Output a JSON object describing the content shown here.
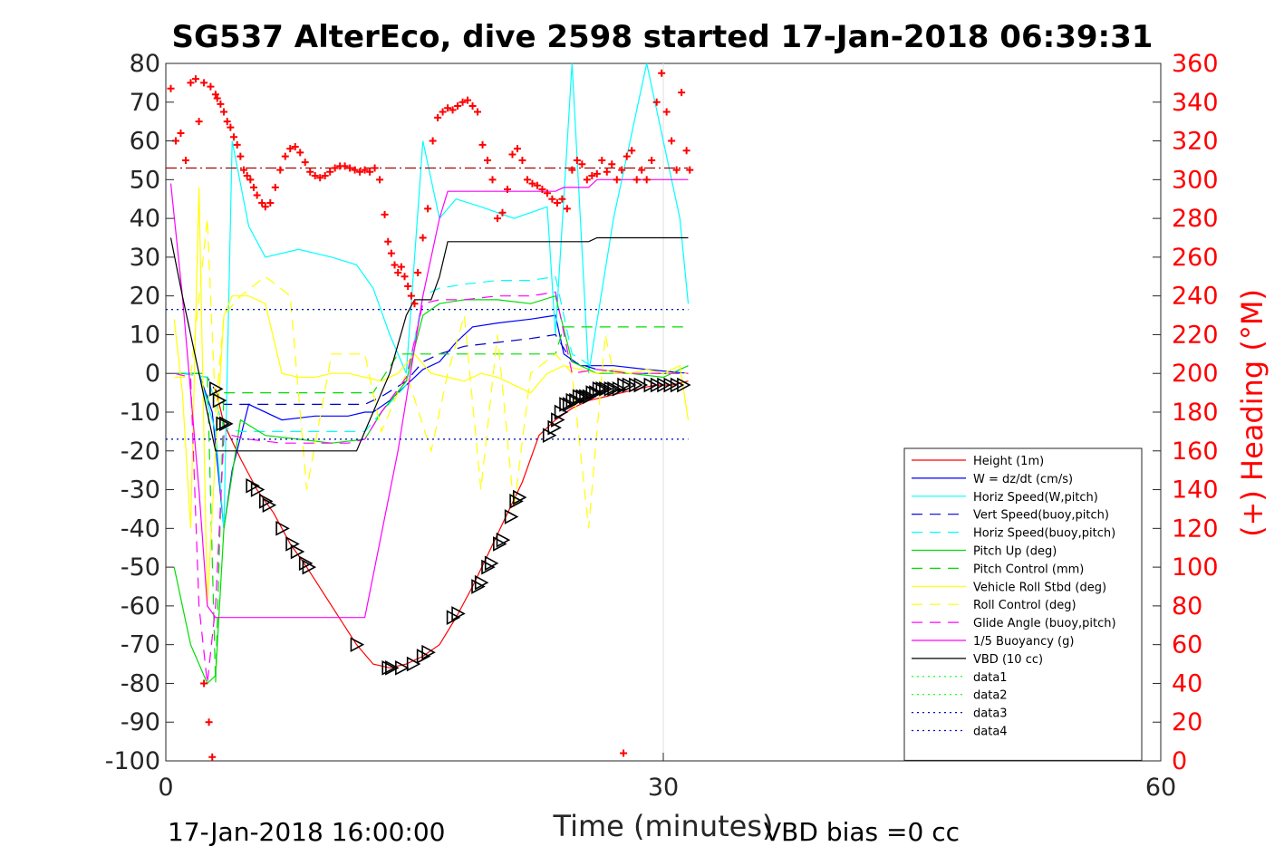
{
  "chart_data": {
    "type": "line",
    "title": "SG537 AlterEco, dive 2598 started 17-Jan-2018 06:39:31",
    "xlabel": "Time (minutes)",
    "ylabel_right": "(+) Heading (°M)",
    "footer_left": "17-Jan-2018 16:00:00",
    "footer_right": "VBD bias =0 cc",
    "xlim": [
      0,
      60
    ],
    "ylim": [
      -100,
      80
    ],
    "ylim_right": [
      0,
      360
    ],
    "x_ticks": [
      "0",
      "30",
      "60"
    ],
    "y_ticks": [
      "80",
      "70",
      "60",
      "50",
      "40",
      "30",
      "20",
      "10",
      "0",
      "-10",
      "-20",
      "-30",
      "-40",
      "-50",
      "-60",
      "-70",
      "-80",
      "-90",
      "-100"
    ],
    "y_ticks_right": [
      "360",
      "340",
      "320",
      "300",
      "280",
      "260",
      "240",
      "220",
      "200",
      "180",
      "160",
      "140",
      "120",
      "100",
      "80",
      "60",
      "40",
      "20",
      "0"
    ],
    "grid": "x-only at 30",
    "legend_position": "lower-right",
    "colors": {
      "red": "#ff0000",
      "blue": "#0000ff",
      "cyan": "#00ffff",
      "darkblue": "#0000cc",
      "green": "#00dd00",
      "yellow": "#ffff00",
      "magenta": "#ff00ff",
      "black": "#000000",
      "darkred": "#aa0000"
    },
    "series": [
      {
        "name": "Height (1m)",
        "color": "#ff0000",
        "style": "solid",
        "x": [
          3.0,
          3.5,
          4.5,
          5.5,
          6.5,
          7.5,
          8.5,
          10.0,
          11.5,
          12.5,
          13.5,
          14.5,
          15.5,
          16.5,
          17.5,
          18.5,
          19.5,
          20.5,
          21.5,
          22.5,
          23.5,
          24.5,
          25.5,
          26.5,
          27.5,
          28.5,
          29.5,
          30.5,
          31.5
        ],
        "y": [
          -4,
          -13,
          -22,
          -30,
          -36,
          -44,
          -50,
          -60,
          -70,
          -75,
          -76,
          -75,
          -73,
          -70,
          -63,
          -55,
          -46,
          -37,
          -28,
          -16,
          -12,
          -9,
          -7,
          -6,
          -5,
          -4,
          -3,
          -3,
          -2
        ]
      },
      {
        "name": "W = dz/dt (cm/s)",
        "color": "#0000ff",
        "style": "solid",
        "x": [
          0.5,
          2.0,
          2.8,
          3.5,
          4.0,
          5.0,
          7.0,
          9.0,
          11.0,
          12.0,
          12.5,
          13.5,
          14.5,
          15.5,
          16.5,
          17.5,
          18.5,
          20.0,
          22.0,
          23.5,
          24.0,
          25.0,
          27.0,
          29.0,
          31.5
        ],
        "y": [
          0,
          0,
          -10,
          -40,
          -25,
          -8,
          -12,
          -11,
          -11,
          -10,
          -10,
          -7,
          -3,
          1,
          3,
          8,
          12,
          13,
          14,
          15,
          5,
          2,
          2,
          1,
          0
        ]
      },
      {
        "name": "Horiz Speed(W,pitch)",
        "color": "#00ffff",
        "style": "solid",
        "x": [
          0.5,
          2.0,
          3.0,
          3.5,
          4.0,
          5.0,
          6.0,
          8.0,
          10.0,
          11.5,
          12.5,
          13.5,
          14.5,
          15.5,
          16.5,
          17.5,
          19.0,
          21.0,
          23.0,
          23.5,
          24.5,
          25.5,
          27.0,
          29.0,
          31.0,
          31.5
        ],
        "y": [
          0,
          0,
          -15,
          -40,
          60,
          38,
          30,
          32,
          30,
          28,
          22,
          10,
          0,
          60,
          40,
          45,
          43,
          40,
          43,
          10,
          80,
          0,
          40,
          80,
          40,
          18
        ]
      },
      {
        "name": "Vert Speed(buoy,pitch)",
        "color": "#0000cc",
        "style": "dash",
        "x": [
          1.0,
          2.5,
          3.5,
          4.5,
          6.0,
          8.0,
          10.0,
          12.0,
          13.0,
          14.5,
          15.5,
          16.5,
          18.0,
          20.0,
          22.0,
          23.5,
          24.5,
          26.0,
          28.0,
          31.0
        ],
        "y": [
          0,
          -1,
          -8,
          -8,
          -8,
          -8,
          -8,
          -8,
          -6,
          -2,
          3,
          5,
          7,
          8,
          9,
          10,
          3,
          1,
          0,
          0
        ]
      },
      {
        "name": "Horiz Speed(buoy,pitch)",
        "color": "#00ffff",
        "style": "dash",
        "x": [
          1.0,
          2.5,
          3.5,
          4.5,
          6.0,
          8.0,
          10.0,
          12.0,
          13.0,
          14.5,
          15.5,
          16.5,
          18.0,
          20.0,
          22.0,
          23.5,
          24.5,
          26.0,
          28.0,
          31.0
        ],
        "y": [
          0,
          -1,
          -14,
          -15,
          -15,
          -15,
          -15,
          -15,
          -10,
          -3,
          20,
          22,
          23,
          24,
          24,
          25,
          5,
          1,
          0,
          0
        ]
      },
      {
        "name": "Pitch Up (deg)",
        "color": "#00dd00",
        "style": "solid",
        "x": [
          0.5,
          1.5,
          2.5,
          3.0,
          3.5,
          4.5,
          6.0,
          8.0,
          10.0,
          12.0,
          13.0,
          14.5,
          15.5,
          16.5,
          18.0,
          20.0,
          22.0,
          23.5,
          24.5,
          26.0,
          28.0,
          30.0,
          31.5
        ],
        "y": [
          -50,
          -70,
          -80,
          -78,
          -40,
          -12,
          -16,
          -17,
          -18,
          -17,
          -10,
          -2,
          15,
          18,
          19,
          19,
          18,
          20,
          3,
          0,
          0,
          -1,
          2
        ]
      },
      {
        "name": "Pitch Control (mm)",
        "color": "#00dd00",
        "style": "dash",
        "x": [
          0.5,
          2.5,
          3.0,
          3.5,
          5.0,
          8.0,
          11.0,
          12.5,
          14.0,
          15.5,
          17.0,
          20.0,
          23.5,
          24.0,
          27.0,
          31.5
        ],
        "y": [
          0,
          0,
          -80,
          -5,
          -5,
          -5,
          -5,
          -5,
          5,
          5,
          5,
          5,
          5,
          12,
          12,
          12
        ]
      },
      {
        "name": "Vehicle Roll Stbd (deg)",
        "color": "#ffff00",
        "style": "solid",
        "x": [
          0.5,
          1.0,
          1.5,
          2.0,
          2.5,
          3.0,
          3.5,
          4.0,
          5.0,
          6.0,
          7.0,
          8.0,
          9.0,
          10.0,
          11.0,
          12.0,
          13.0,
          14.0,
          15.0,
          16.0,
          17.0,
          18.0,
          19.0,
          20.0,
          21.0,
          22.0,
          23.0,
          24.0,
          25.0,
          26.0,
          27.0,
          28.0,
          29.0,
          30.0,
          31.0,
          31.5
        ],
        "y": [
          14,
          -5,
          -40,
          48,
          -60,
          -20,
          15,
          20,
          20,
          18,
          0,
          -1,
          -1,
          0,
          0,
          -1,
          -2,
          0,
          5,
          0,
          -1,
          -2,
          0,
          -1,
          -3,
          -5,
          0,
          2,
          1,
          0,
          1,
          0,
          1,
          0,
          2,
          -12
        ]
      },
      {
        "name": "Roll Control (deg)",
        "color": "#ffff00",
        "style": "dash",
        "x": [
          0.5,
          1.5,
          2.5,
          3.0,
          3.5,
          4.5,
          6.0,
          7.5,
          8.5,
          10.0,
          12.0,
          13.0,
          14.5,
          16.0,
          17.0,
          18.0,
          19.0,
          20.0,
          21.0,
          22.0,
          23.5,
          24.5,
          25.5,
          26.5,
          27.0,
          28.0,
          30.0,
          31.5
        ],
        "y": [
          -1,
          -1,
          40,
          -10,
          15,
          20,
          25,
          20,
          -30,
          5,
          5,
          -15,
          0,
          -20,
          0,
          15,
          -30,
          10,
          -35,
          0,
          5,
          0,
          -40,
          10,
          0,
          0,
          0,
          0
        ]
      },
      {
        "name": "Glide Angle (buoy,pitch)",
        "color": "#ff00ff",
        "style": "dash",
        "x": [
          0.5,
          1.5,
          2.0,
          2.5,
          3.0,
          3.5,
          4.0,
          5.0,
          7.0,
          9.0,
          11.0,
          12.0,
          13.0,
          14.5,
          15.5,
          16.5,
          18.0,
          20.0,
          22.0,
          23.5,
          24.5,
          26.0,
          28.0,
          31.5
        ],
        "y": [
          0,
          -1,
          -60,
          -80,
          -60,
          -16,
          -16,
          -17,
          -18,
          -18,
          -18,
          -17,
          -10,
          -1,
          18,
          19,
          19,
          20,
          20,
          21,
          0,
          1,
          0,
          0
        ]
      },
      {
        "name": "1/5 Buoyancy (g)",
        "color": "#ff00ff",
        "style": "solid",
        "x": [
          0.3,
          1.0,
          2.0,
          2.5,
          3.0,
          4.0,
          8.0,
          11.5,
          12.0,
          14.0,
          15.5,
          16.5,
          17.0,
          23.5,
          24.0,
          25.5,
          26.0,
          31.5
        ],
        "y": [
          49,
          20,
          -30,
          -60,
          -63,
          -63,
          -63,
          -63,
          -63,
          -20,
          20,
          40,
          47,
          47,
          48,
          48,
          50,
          50
        ]
      },
      {
        "name": "VBD (10 cc)",
        "color": "#000000",
        "style": "solid",
        "x": [
          0.3,
          1.0,
          2.0,
          3.0,
          4.0,
          8.0,
          11.5,
          12.5,
          13.5,
          14.5,
          15.0,
          15.5,
          16.0,
          16.5,
          17.0,
          18.0,
          23.5,
          25.5,
          26.0,
          31.5
        ],
        "y": [
          35,
          20,
          0,
          -20,
          -20,
          -20,
          -20,
          -10,
          0,
          15,
          19,
          19,
          19,
          25,
          34,
          34,
          34,
          34,
          35,
          35
        ]
      },
      {
        "name": "data1",
        "color": "#00ff00",
        "style": "dot",
        "x": [
          0,
          31.5
        ],
        "y": [
          16.5,
          16.5
        ]
      },
      {
        "name": "data2",
        "color": "#00ff00",
        "style": "dot",
        "x": [
          0,
          31.5
        ],
        "y": [
          -17,
          -17
        ]
      },
      {
        "name": "data3",
        "color": "#0000cc",
        "style": "dot",
        "x": [
          0,
          31.5
        ],
        "y": [
          16.5,
          16.5
        ]
      },
      {
        "name": "data4",
        "color": "#0000cc",
        "style": "dot",
        "x": [
          0,
          31.5
        ],
        "y": [
          -17,
          -17
        ]
      }
    ],
    "heading_reference": {
      "color": "#aa0000",
      "style": "dashdot",
      "value_right": 306,
      "x": [
        0,
        31.5
      ]
    },
    "heading_points": {
      "color": "#ff0000",
      "x": [
        0.3,
        0.6,
        0.9,
        1.2,
        1.5,
        1.8,
        2.0,
        2.3,
        2.7,
        3.0,
        3.1,
        3.3,
        3.5,
        3.7,
        3.9,
        4.1,
        4.3,
        4.5,
        4.7,
        4.9,
        5.1,
        5.3,
        5.5,
        5.8,
        6.0,
        6.3,
        6.6,
        6.9,
        7.2,
        7.5,
        7.8,
        8.1,
        8.4,
        8.7,
        9.0,
        9.3,
        9.6,
        9.9,
        10.2,
        10.5,
        10.8,
        11.1,
        11.4,
        11.7,
        12.0,
        12.3,
        12.6,
        12.9,
        13.2,
        13.4,
        13.6,
        13.8,
        14.0,
        14.2,
        14.4,
        14.6,
        14.8,
        15.0,
        15.2,
        15.5,
        15.8,
        16.1,
        16.4,
        16.7,
        17.0,
        17.3,
        17.6,
        17.9,
        18.2,
        18.5,
        18.8,
        19.1,
        19.4,
        19.7,
        20.0,
        20.3,
        20.6,
        20.9,
        21.2,
        21.5,
        21.8,
        22.1,
        22.4,
        22.7,
        23.0,
        23.3,
        23.6,
        23.9,
        24.2,
        24.5,
        24.8,
        25.1,
        25.4,
        25.7,
        26.0,
        26.3,
        26.6,
        26.9,
        27.2,
        27.5,
        27.8,
        28.1,
        28.4,
        28.7,
        29.0,
        29.3,
        29.6,
        29.9,
        30.2,
        30.5,
        30.8,
        31.1,
        31.4,
        31.6,
        2.3,
        2.6,
        2.8,
        27.6
      ],
      "y": [
        347,
        320,
        324,
        310,
        350,
        352,
        330,
        350,
        348,
        344,
        342,
        339,
        335,
        330,
        327,
        322,
        318,
        312,
        305,
        302,
        300,
        296,
        292,
        288,
        286,
        288,
        296,
        305,
        312,
        316,
        317,
        314,
        309,
        304,
        302,
        301,
        302,
        304,
        306,
        307,
        307,
        306,
        305,
        304,
        305,
        304,
        306,
        300,
        282,
        268,
        262,
        256,
        252,
        255,
        250,
        245,
        240,
        236,
        252,
        270,
        285,
        320,
        332,
        335,
        337,
        336,
        338,
        340,
        341,
        338,
        335,
        318,
        310,
        300,
        280,
        283,
        295,
        313,
        316,
        310,
        300,
        298,
        297,
        295,
        293,
        290,
        288,
        290,
        285,
        305,
        310,
        308,
        300,
        302,
        303,
        310,
        304,
        308,
        300,
        305,
        312,
        315,
        300,
        305,
        300,
        310,
        340,
        355,
        335,
        320,
        305,
        345,
        315,
        305,
        40,
        20,
        2,
        4
      ]
    },
    "markers": {
      "color": "#000000",
      "down_triangles": [
        [
          3.0,
          -4
        ],
        [
          3.2,
          -7
        ],
        [
          3.4,
          -13
        ],
        [
          3.6,
          -13
        ],
        [
          5.2,
          -29
        ],
        [
          5.5,
          -30
        ],
        [
          6.0,
          -33
        ],
        [
          6.2,
          -34
        ],
        [
          7.0,
          -40
        ],
        [
          7.6,
          -44
        ],
        [
          7.9,
          -46
        ],
        [
          8.4,
          -49
        ],
        [
          8.6,
          -50
        ],
        [
          11.5,
          -70
        ],
        [
          13.4,
          -76
        ],
        [
          13.6,
          -76
        ],
        [
          14.2,
          -76
        ],
        [
          14.9,
          -75
        ],
        [
          15.5,
          -73
        ],
        [
          15.8,
          -72
        ],
        [
          17.3,
          -63
        ],
        [
          17.6,
          -62
        ],
        [
          18.8,
          -55
        ],
        [
          19.0,
          -54
        ],
        [
          19.4,
          -50
        ],
        [
          19.6,
          -49
        ],
        [
          20.1,
          -44
        ],
        [
          20.3,
          -43
        ],
        [
          20.8,
          -37
        ],
        [
          21.1,
          -33
        ],
        [
          21.3,
          -32
        ],
        [
          23.1,
          -16
        ],
        [
          23.4,
          -14
        ],
        [
          23.6,
          -12
        ],
        [
          23.8,
          -10
        ],
        [
          24.1,
          -8
        ],
        [
          24.3,
          -8
        ],
        [
          24.5,
          -7
        ],
        [
          24.7,
          -7
        ],
        [
          24.9,
          -6
        ],
        [
          25.1,
          -6
        ],
        [
          25.3,
          -6
        ],
        [
          25.5,
          -6
        ],
        [
          25.7,
          -5
        ],
        [
          25.9,
          -5
        ],
        [
          26.1,
          -4
        ],
        [
          26.3,
          -4
        ],
        [
          26.5,
          -4
        ],
        [
          26.8,
          -4
        ],
        [
          27.0,
          -4
        ],
        [
          27.3,
          -4
        ],
        [
          27.6,
          -3
        ],
        [
          27.9,
          -3
        ],
        [
          28.3,
          -3
        ],
        [
          28.6,
          -3
        ],
        [
          29.2,
          -3
        ],
        [
          29.6,
          -3
        ],
        [
          30.0,
          -3
        ],
        [
          30.4,
          -3
        ],
        [
          30.8,
          -3
        ],
        [
          31.2,
          -3
        ]
      ]
    }
  }
}
